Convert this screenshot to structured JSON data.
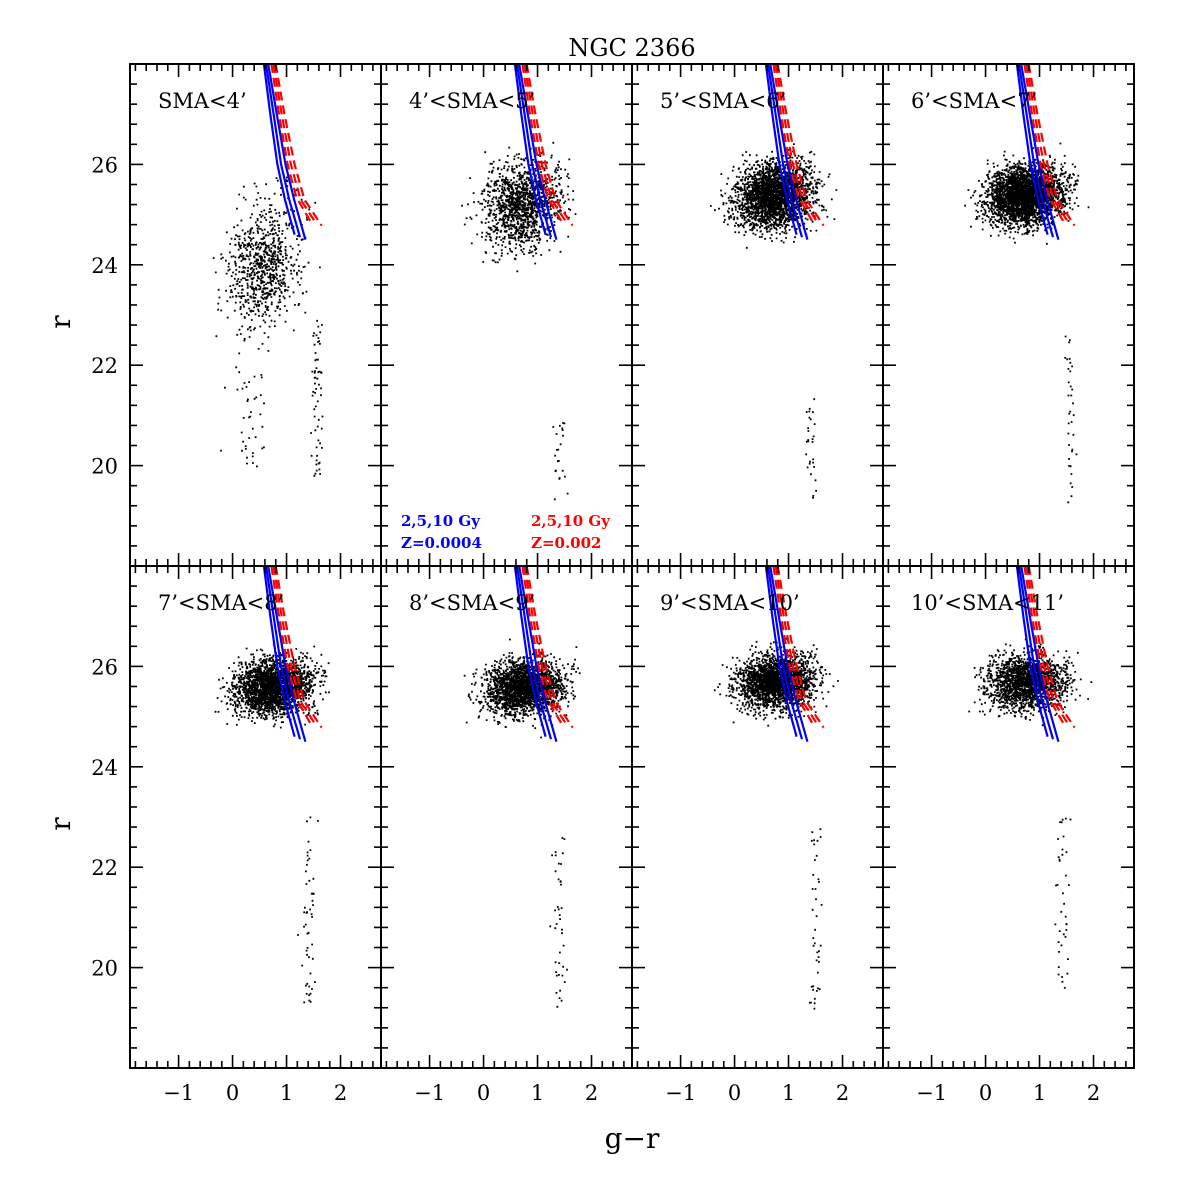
{
  "chart_data": {
    "type": "scatter",
    "title": "NGC 2366",
    "xlabel": "g−r",
    "ylabel": "r",
    "xlim": [
      -1.9,
      2.75
    ],
    "ylim": [
      28.0,
      18.0
    ],
    "y_inverted": true,
    "xticks": [
      -1,
      0,
      1,
      2
    ],
    "xtick_labels": [
      "−1",
      "0",
      "1",
      "2"
    ],
    "yticks": [
      20,
      22,
      24,
      26
    ],
    "ytick_labels": [
      "20",
      "22",
      "24",
      "26"
    ],
    "layout": "2 rows x 4 columns, shared axes",
    "panels": [
      {
        "label": "SMA<4’",
        "field": {
          "n": 800,
          "xmin": -0.5,
          "xmax": 2.1,
          "ymin": 19.5,
          "ymax": 26.8,
          "spread": 0.5,
          "cy": 24.0,
          "sy": 1.6
        },
        "clumps": [
          {
            "n": 60,
            "x": 1.55,
            "sx": 0.13,
            "ymin": 19.8,
            "ymax": 23.0
          },
          {
            "n": 40,
            "x": 0.3,
            "sx": 0.4,
            "ymin": 20.0,
            "ymax": 22.0
          }
        ]
      },
      {
        "label": "4’<SMA<5’",
        "field": {
          "n": 1300,
          "xmin": -0.6,
          "xmax": 2.1,
          "ymin": 21.0,
          "ymax": 27.2,
          "spread": 0.55,
          "cy": 25.2,
          "sy": 1.1
        },
        "clumps": [
          {
            "n": 22,
            "x": 1.4,
            "sx": 0.18,
            "ymin": 19.3,
            "ymax": 21.0
          }
        ]
      },
      {
        "label": "5’<SMA<6’",
        "field": {
          "n": 2600,
          "xmin": -0.8,
          "xmax": 2.4,
          "ymin": 22.0,
          "ymax": 27.0,
          "spread": 0.55,
          "cy": 25.4,
          "sy": 0.8
        },
        "clumps": [
          {
            "n": 28,
            "x": 1.4,
            "sx": 0.12,
            "ymin": 19.3,
            "ymax": 21.5
          }
        ]
      },
      {
        "label": "6’<SMA<7’",
        "field": {
          "n": 3100,
          "xmin": -0.8,
          "xmax": 2.3,
          "ymin": 22.0,
          "ymax": 26.9,
          "spread": 0.55,
          "cy": 25.4,
          "sy": 0.75
        },
        "clumps": [
          {
            "n": 35,
            "x": 1.55,
            "sx": 0.12,
            "ymin": 19.2,
            "ymax": 22.6
          }
        ]
      },
      {
        "label": "7’<SMA<8’",
        "field": {
          "n": 2400,
          "xmin": -0.7,
          "xmax": 2.3,
          "ymin": 22.8,
          "ymax": 26.8,
          "spread": 0.55,
          "cy": 25.6,
          "sy": 0.7
        },
        "clumps": [
          {
            "n": 50,
            "x": 1.4,
            "sx": 0.15,
            "ymin": 19.3,
            "ymax": 23.2
          }
        ]
      },
      {
        "label": "8’<SMA<9’",
        "field": {
          "n": 2300,
          "xmin": -0.7,
          "xmax": 2.2,
          "ymin": 23.0,
          "ymax": 26.8,
          "spread": 0.55,
          "cy": 25.6,
          "sy": 0.7
        },
        "clumps": [
          {
            "n": 40,
            "x": 1.4,
            "sx": 0.15,
            "ymin": 19.2,
            "ymax": 22.6
          }
        ]
      },
      {
        "label": "9’<SMA<10’",
        "field": {
          "n": 2300,
          "xmin": -0.6,
          "xmax": 2.2,
          "ymin": 23.0,
          "ymax": 26.8,
          "spread": 0.55,
          "cy": 25.7,
          "sy": 0.7
        },
        "clumps": [
          {
            "n": 40,
            "x": 1.5,
            "sx": 0.13,
            "ymin": 19.2,
            "ymax": 22.8
          }
        ]
      },
      {
        "label": "10’<SMA<11’",
        "field": {
          "n": 1900,
          "xmin": -0.7,
          "xmax": 2.3,
          "ymin": 23.3,
          "ymax": 26.8,
          "spread": 0.55,
          "cy": 25.7,
          "sy": 0.7
        },
        "clumps": [
          {
            "n": 38,
            "x": 1.4,
            "sx": 0.15,
            "ymin": 19.5,
            "ymax": 23.0
          }
        ]
      }
    ],
    "series": [
      {
        "name": "2,5,10 Gy, Z=0.0004",
        "color": "#0000ff",
        "style": "solid",
        "curves": [
          [
            [
              0.58,
              28.0
            ],
            [
              0.7,
              27.0
            ],
            [
              0.83,
              26.0
            ],
            [
              0.97,
              25.3
            ],
            [
              1.15,
              24.6
            ]
          ],
          [
            [
              0.62,
              28.0
            ],
            [
              0.76,
              27.0
            ],
            [
              0.9,
              26.0
            ],
            [
              1.05,
              25.3
            ],
            [
              1.25,
              24.55
            ]
          ],
          [
            [
              0.66,
              28.0
            ],
            [
              0.82,
              27.0
            ],
            [
              0.98,
              26.0
            ],
            [
              1.14,
              25.3
            ],
            [
              1.35,
              24.5
            ]
          ]
        ]
      },
      {
        "name": "2,5,10 Gy, Z=0.002",
        "color": "#ff0000",
        "style": "dashed",
        "curves": [
          [
            [
              0.72,
              28.0
            ],
            [
              0.86,
              27.0
            ],
            [
              1.02,
              26.0
            ],
            [
              1.18,
              25.35
            ],
            [
              1.45,
              24.85
            ]
          ],
          [
            [
              0.76,
              28.0
            ],
            [
              0.91,
              27.0
            ],
            [
              1.08,
              26.0
            ],
            [
              1.26,
              25.3
            ],
            [
              1.55,
              24.82
            ]
          ],
          [
            [
              0.8,
              28.0
            ],
            [
              0.96,
              27.0
            ],
            [
              1.15,
              26.0
            ],
            [
              1.33,
              25.3
            ],
            [
              1.65,
              24.78
            ]
          ]
        ]
      }
    ],
    "legend": {
      "panel": "4’<SMA<5’",
      "placement": "bottom",
      "blue_age": "2,5,10 Gy",
      "blue_z": "Z=0.0004",
      "red_age": "2,5,10 Gy",
      "red_z": "Z=0.002"
    }
  }
}
